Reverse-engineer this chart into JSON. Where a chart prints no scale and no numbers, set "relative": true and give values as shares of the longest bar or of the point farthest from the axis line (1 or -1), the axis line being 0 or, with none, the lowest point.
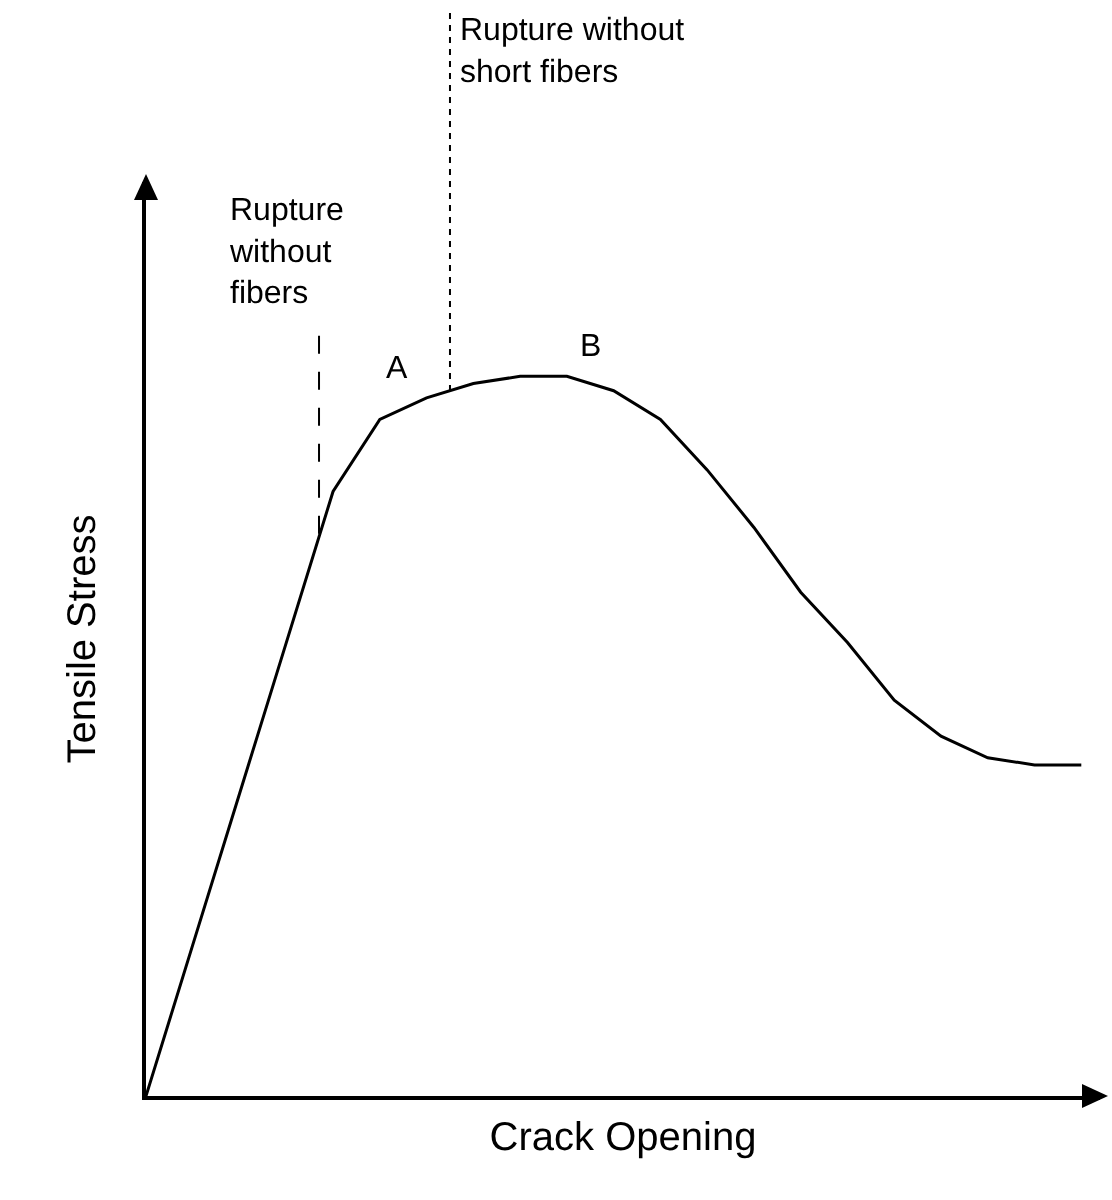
{
  "chart_data": {
    "type": "line",
    "relative": true,
    "xlabel": "Crack Opening",
    "ylabel": "Tensile Stress",
    "categories": [
      null,
      null,
      null,
      null,
      null,
      null,
      null,
      null,
      null,
      null,
      null,
      null,
      null,
      null,
      null,
      null,
      null,
      null,
      null,
      null,
      null
    ],
    "values": [
      0,
      0.21,
      0.42,
      0.63,
      0.84,
      0.94,
      0.97,
      0.99,
      1.0,
      1.0,
      0.98,
      0.94,
      0.87,
      0.79,
      0.7,
      0.63,
      0.55,
      0.5,
      0.47,
      0.46,
      0.46
    ],
    "color": "#000000",
    "marker": "none",
    "line_style": "solid",
    "grid": false,
    "legend": false,
    "annotations": [
      "Rupture without fibers",
      "Rupture without short fibers",
      "A",
      "B"
    ]
  }
}
